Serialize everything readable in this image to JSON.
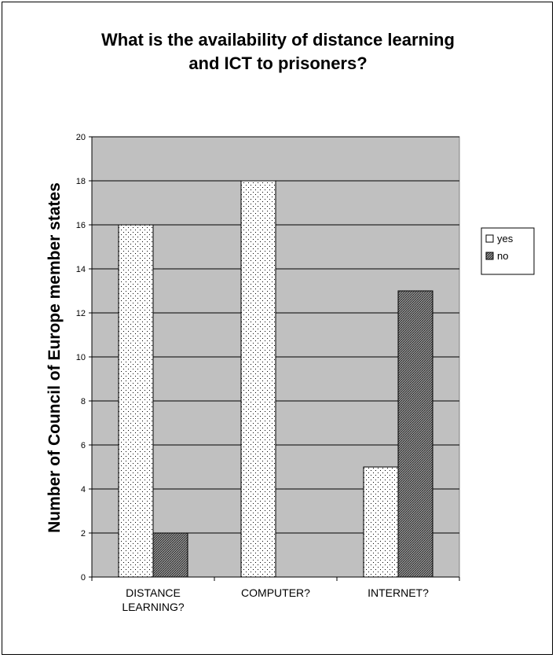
{
  "chart_data": {
    "type": "bar",
    "title_lines": [
      "What is the availability of distance learning",
      "and ICT to prisoners?"
    ],
    "ylabel": "Number of Council of Europe member states",
    "xlabel": "",
    "ylim": [
      0,
      20
    ],
    "yticks": [
      0,
      2,
      4,
      6,
      8,
      10,
      12,
      14,
      16,
      18,
      20
    ],
    "categories": [
      [
        "DISTANCE",
        "LEARNING?"
      ],
      [
        "COMPUTER?"
      ],
      [
        "INTERNET?"
      ]
    ],
    "series": [
      {
        "name": "yes",
        "values": [
          16,
          18,
          5
        ],
        "pattern": "dots"
      },
      {
        "name": "no",
        "values": [
          2,
          0,
          13
        ],
        "pattern": "crosshatch"
      }
    ],
    "grid": true,
    "legend_position": "right",
    "colors": {
      "plot_bg": "#c0c0c0",
      "yes_fill": "#ffffff",
      "no_fill": "#707070"
    }
  }
}
